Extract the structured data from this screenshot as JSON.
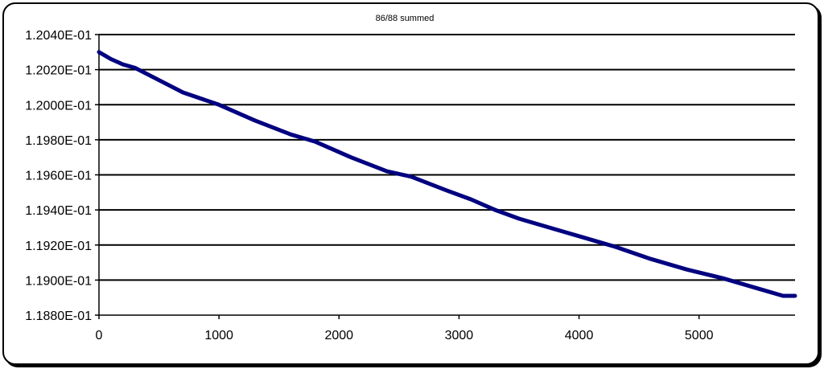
{
  "chart_data": {
    "type": "line",
    "title": "86/88 summed",
    "xlabel": "",
    "ylabel": "",
    "xlim": [
      0,
      5800
    ],
    "ylim": [
      0.1188,
      0.1204
    ],
    "grid": "horizontal",
    "legend": "none",
    "x_ticks": [
      0,
      1000,
      2000,
      3000,
      4000,
      5000
    ],
    "x_tick_labels": [
      "0",
      "1000",
      "2000",
      "3000",
      "4000",
      "5000"
    ],
    "y_ticks": [
      0.1188,
      0.119,
      0.1192,
      0.1194,
      0.1196,
      0.1198,
      0.12,
      0.1202,
      0.1204
    ],
    "y_tick_labels": [
      "1.1880E-01",
      "1.1900E-01",
      "1.1920E-01",
      "1.1940E-01",
      "1.1960E-01",
      "1.1980E-01",
      "1.2000E-01",
      "1.2020E-01",
      "1.2040E-01"
    ],
    "series": [
      {
        "color": "#000080",
        "x": [
          0,
          50,
          100,
          200,
          300,
          500,
          700,
          1000,
          1300,
          1600,
          1800,
          2100,
          2400,
          2600,
          2900,
          3100,
          3300,
          3500,
          3800,
          4000,
          4300,
          4600,
          4900,
          5200,
          5500,
          5700,
          5800
        ],
        "y": [
          0.1203,
          0.12028,
          0.12026,
          0.12023,
          0.12021,
          0.12014,
          0.12007,
          0.12,
          0.11991,
          0.11983,
          0.11979,
          0.1197,
          0.11962,
          0.11959,
          0.11951,
          0.11946,
          0.1194,
          0.11935,
          0.11929,
          0.11925,
          0.11919,
          0.11912,
          0.11906,
          0.11901,
          0.11895,
          0.11891,
          0.11891
        ]
      }
    ]
  },
  "colors": {
    "line": "#000080",
    "grid": "#000000",
    "frame": "#000000",
    "background": "#ffffff"
  }
}
